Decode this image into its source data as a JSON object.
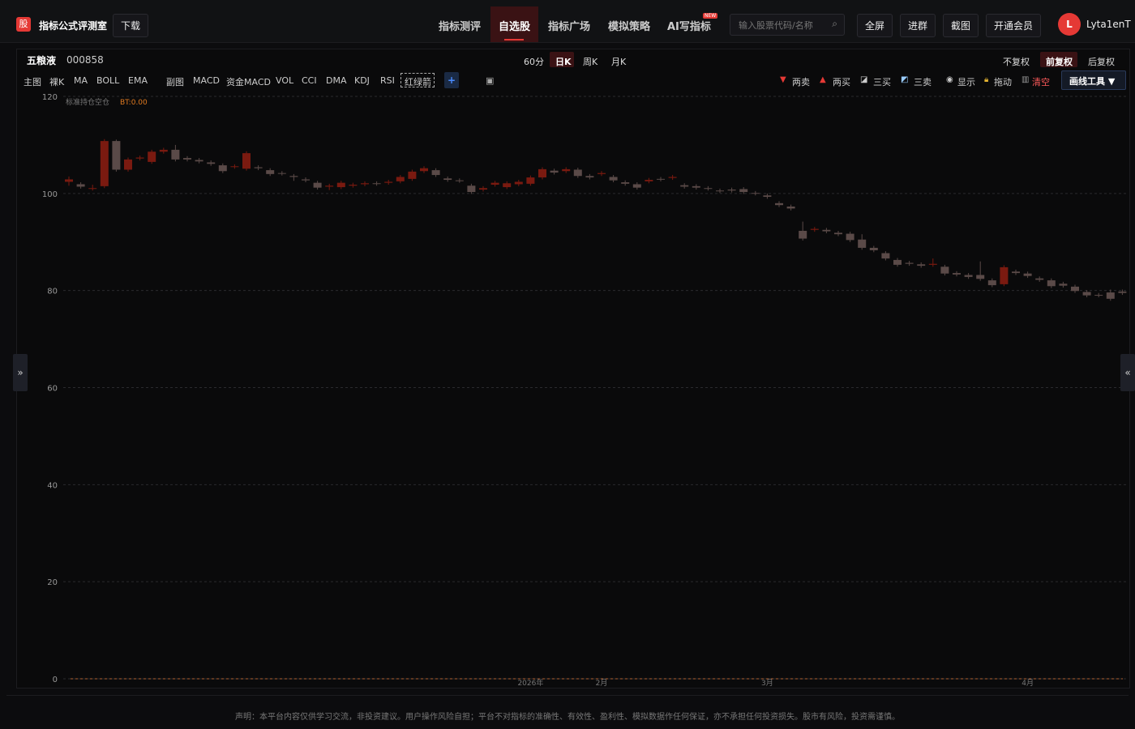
{
  "header": {
    "logo": "股",
    "title": "指标公式评测室",
    "download": "下载",
    "nav": [
      "指标测评",
      "自选股",
      "指标广场",
      "模拟策略",
      "AI写指标"
    ],
    "badge": "NEW",
    "search": "输入股票代码/名称",
    "buttons": [
      "全屏",
      "进群",
      "截图",
      "开通会员"
    ],
    "avatar": "L",
    "username": "Lyta1enT"
  },
  "stock": {
    "name": "五粮液",
    "code": "000858",
    "periods": [
      "60分",
      "日K",
      "周K",
      "月K"
    ],
    "adjust": [
      "不复权",
      "前复权",
      "后复权"
    ]
  },
  "toolbar": {
    "main": [
      "主图",
      "裸K",
      "MA",
      "BOLL",
      "EMA"
    ],
    "sub": [
      "副图",
      "MACD",
      "资金MACD",
      "VOL",
      "CCI",
      "DMA",
      "KDJ",
      "RSI",
      "红绿箭"
    ],
    "add": "+",
    "tools": [
      "两卖",
      "两买",
      "三买",
      "三卖",
      "显示",
      "拖动",
      "清空"
    ],
    "draw": "画线工具 ▼"
  },
  "side": {
    "left": "»",
    "right": "«"
  },
  "chart_data": {
    "type": "candlestick",
    "legend": "标准持仓空仓",
    "bt": "BT:0.00",
    "ylim": [
      0,
      120
    ],
    "yticks": [
      0,
      20,
      40,
      60,
      80,
      100,
      120
    ],
    "grid": true,
    "up_color": "#7a1a10",
    "down_color": "#5a4a48",
    "categories": [
      null,
      null,
      null,
      null,
      null,
      null,
      null,
      null,
      null,
      null,
      null,
      null,
      null,
      null,
      null,
      null,
      null,
      null,
      null,
      null,
      null,
      null,
      null,
      null,
      null,
      null,
      null,
      null,
      null,
      null,
      null,
      null,
      null,
      null,
      null,
      null,
      null,
      null,
      null,
      "2026年",
      null,
      null,
      null,
      null,
      null,
      "2月",
      null,
      null,
      null,
      null,
      null,
      null,
      null,
      null,
      null,
      null,
      null,
      null,
      null,
      "3月",
      null,
      null,
      null,
      null,
      null,
      null,
      null,
      null,
      null,
      null,
      null,
      null,
      null,
      null,
      null,
      null,
      null,
      null,
      null,
      null,
      null,
      "4月",
      null,
      null,
      null,
      null,
      null,
      null,
      null,
      null
    ],
    "open": [
      102.4,
      101.9,
      101.0,
      101.5,
      110.8,
      104.9,
      107.2,
      106.5,
      108.6,
      109.0,
      107.3,
      106.9,
      106.4,
      105.8,
      105.5,
      105.1,
      105.4,
      104.8,
      104.2,
      103.6,
      102.9,
      102.2,
      101.4,
      101.3,
      101.6,
      101.9,
      102.1,
      102.2,
      102.5,
      103.0,
      104.6,
      104.8,
      103.1,
      102.7,
      101.6,
      100.8,
      101.8,
      101.3,
      101.9,
      102.0,
      103.3,
      104.7,
      104.6,
      104.9,
      103.6,
      104.0,
      103.4,
      102.3,
      101.9,
      102.5,
      103.0,
      103.2,
      101.7,
      101.5,
      101.1,
      100.6,
      100.8,
      100.9,
      100.1,
      99.6,
      98.0,
      97.3,
      92.3,
      92.5,
      92.5,
      91.9,
      91.7,
      90.5,
      88.8,
      87.7,
      86.3,
      85.7,
      85.4,
      85.3,
      84.9,
      83.6,
      83.2,
      83.2,
      82.1,
      81.3,
      83.9,
      83.5,
      82.5,
      82.1,
      81.4,
      80.8,
      79.7,
      79.1,
      79.6,
      79.8
    ],
    "close": [
      102.9,
      101.4,
      101.1,
      110.8,
      104.9,
      107.0,
      107.4,
      108.6,
      109.0,
      107.0,
      107.0,
      106.6,
      106.1,
      104.6,
      105.6,
      108.3,
      105.2,
      104.0,
      104.1,
      103.4,
      102.7,
      101.2,
      101.6,
      102.2,
      101.8,
      102.1,
      102.0,
      102.4,
      103.4,
      104.5,
      105.2,
      103.8,
      102.8,
      102.6,
      100.3,
      101.1,
      102.2,
      102.1,
      102.4,
      103.3,
      105.0,
      104.3,
      105.0,
      103.6,
      103.3,
      104.2,
      102.7,
      102.0,
      101.2,
      102.8,
      102.9,
      103.4,
      101.4,
      101.2,
      101.0,
      100.5,
      100.6,
      100.3,
      100.0,
      99.3,
      97.6,
      96.9,
      90.7,
      92.7,
      92.2,
      91.6,
      90.4,
      88.8,
      88.3,
      86.6,
      85.3,
      85.5,
      85.1,
      85.5,
      83.5,
      83.3,
      82.8,
      82.4,
      81.1,
      84.8,
      83.6,
      83.0,
      82.2,
      80.9,
      81.0,
      79.9,
      79.0,
      79.0,
      78.3,
      79.5
    ],
    "high": [
      103.5,
      102.3,
      101.8,
      111.2,
      111.1,
      107.4,
      107.8,
      109.0,
      109.4,
      110.0,
      107.7,
      107.3,
      106.8,
      106.2,
      106.0,
      108.7,
      105.8,
      105.2,
      104.6,
      104.0,
      103.3,
      102.6,
      102.0,
      102.6,
      102.2,
      102.5,
      102.5,
      102.8,
      103.8,
      104.9,
      105.6,
      105.2,
      103.5,
      103.1,
      102.0,
      101.5,
      102.6,
      102.5,
      102.8,
      103.7,
      105.4,
      105.1,
      105.4,
      105.3,
      104.0,
      104.6,
      103.8,
      102.7,
      102.3,
      103.2,
      103.4,
      103.8,
      102.1,
      101.9,
      101.5,
      101.0,
      101.2,
      101.3,
      100.5,
      100.0,
      98.4,
      97.7,
      94.2,
      93.1,
      92.9,
      92.3,
      92.1,
      91.6,
      89.2,
      88.1,
      86.7,
      86.1,
      85.8,
      86.6,
      85.3,
      84.0,
      83.6,
      86.0,
      82.5,
      85.2,
      84.3,
      83.9,
      82.9,
      82.5,
      81.8,
      81.2,
      80.1,
      79.5,
      80.2,
      80.2
    ],
    "low": [
      101.6,
      101.0,
      100.6,
      101.1,
      104.5,
      104.5,
      106.8,
      106.1,
      108.2,
      106.6,
      106.6,
      106.2,
      105.7,
      104.2,
      105.1,
      104.7,
      104.8,
      103.6,
      103.7,
      102.6,
      102.3,
      100.8,
      100.7,
      100.9,
      101.2,
      101.5,
      101.6,
      101.8,
      102.1,
      102.6,
      104.2,
      103.4,
      102.4,
      102.2,
      99.9,
      100.4,
      101.4,
      100.9,
      101.5,
      101.6,
      102.9,
      103.9,
      104.2,
      103.2,
      102.9,
      103.6,
      102.3,
      101.6,
      100.8,
      102.1,
      102.5,
      102.8,
      101.0,
      100.8,
      100.6,
      100.1,
      100.2,
      99.9,
      99.6,
      98.9,
      97.2,
      96.5,
      90.3,
      92.1,
      91.8,
      91.2,
      90.0,
      88.4,
      87.9,
      86.2,
      84.9,
      85.1,
      84.7,
      84.9,
      83.1,
      82.9,
      82.4,
      82.0,
      80.7,
      80.9,
      83.2,
      82.6,
      81.8,
      80.5,
      80.6,
      79.5,
      78.6,
      78.6,
      77.9,
      79.1
    ]
  },
  "footer": "声明：本平台内容仅供学习交流，非投资建议。用户操作风险自担；平台不对指标的准确性、有效性、盈利性、模拟数据作任何保证，亦不承担任何投资损失。股市有风险，投资需谨慎。"
}
